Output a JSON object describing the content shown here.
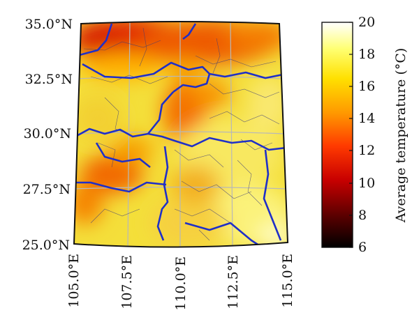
{
  "map": {
    "lat_labels": [
      "35.0°N",
      "32.5°N",
      "30.0°N",
      "27.5°N",
      "25.0°N"
    ],
    "lon_labels": [
      "105.0°E",
      "107.5°E",
      "110.0°E",
      "112.5°E",
      "115.0°E"
    ],
    "extent": {
      "lon_min": 105.0,
      "lon_max": 115.0,
      "lat_min": 25.0,
      "lat_max": 35.0
    },
    "graticule_color": "#b8b8b8",
    "province_border_color": "#1f2fc8",
    "county_border_color": "#3a3a7a"
  },
  "colorbar": {
    "title": "Average temperature (°C)",
    "min": 6,
    "max": 20,
    "ticks": [
      "6",
      "8",
      "10",
      "12",
      "14",
      "16",
      "18",
      "20"
    ],
    "colormap": "hot",
    "stops": [
      "#000000",
      "#5a0000",
      "#c80000",
      "#ff3a00",
      "#ff9a00",
      "#ffe000",
      "#ffff70",
      "#ffffff"
    ]
  }
}
